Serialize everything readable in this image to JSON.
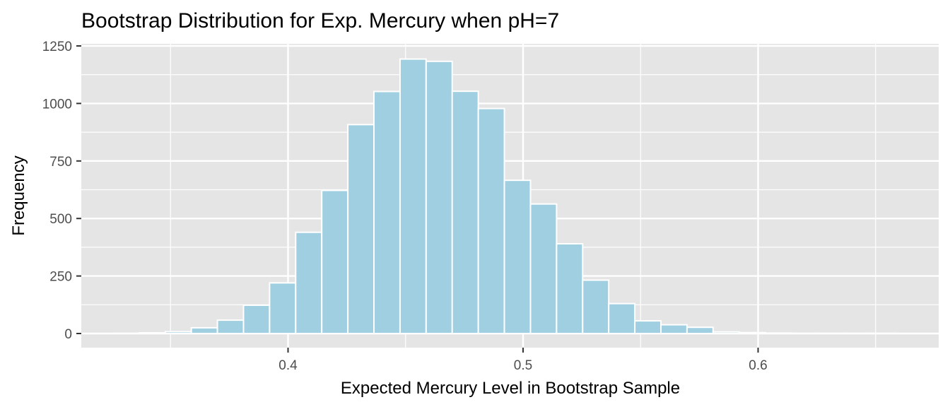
{
  "chart_data": {
    "type": "bar",
    "title": "Bootstrap Distribution for Exp. Mercury when pH=7",
    "xlabel": "Expected Mercury Level in Bootstrap Sample",
    "ylabel": "Frequency",
    "xlim": [
      0.32,
      0.67
    ],
    "ylim": [
      0,
      1250
    ],
    "x_ticks": [
      {
        "value": 0.4,
        "label": "0.4"
      },
      {
        "value": 0.5,
        "label": "0.5"
      },
      {
        "value": 0.6,
        "label": "0.6"
      }
    ],
    "y_ticks": [
      {
        "value": 0,
        "label": "0"
      },
      {
        "value": 250,
        "label": "250"
      },
      {
        "value": 500,
        "label": "500"
      },
      {
        "value": 750,
        "label": "750"
      },
      {
        "value": 1000,
        "label": "1000"
      },
      {
        "value": 1250,
        "label": "1250"
      }
    ],
    "bin_width": 0.0111,
    "bins": [
      {
        "x": 0.3311,
        "count": 1
      },
      {
        "x": 0.3422,
        "count": 3
      },
      {
        "x": 0.3533,
        "count": 8
      },
      {
        "x": 0.3644,
        "count": 25
      },
      {
        "x": 0.3755,
        "count": 58
      },
      {
        "x": 0.3866,
        "count": 123
      },
      {
        "x": 0.3977,
        "count": 220
      },
      {
        "x": 0.4088,
        "count": 440
      },
      {
        "x": 0.4199,
        "count": 622
      },
      {
        "x": 0.431,
        "count": 908
      },
      {
        "x": 0.4421,
        "count": 1052
      },
      {
        "x": 0.4532,
        "count": 1193
      },
      {
        "x": 0.4643,
        "count": 1183
      },
      {
        "x": 0.4754,
        "count": 1053
      },
      {
        "x": 0.4865,
        "count": 978
      },
      {
        "x": 0.4976,
        "count": 666
      },
      {
        "x": 0.5087,
        "count": 563
      },
      {
        "x": 0.5198,
        "count": 390
      },
      {
        "x": 0.5309,
        "count": 232
      },
      {
        "x": 0.542,
        "count": 130
      },
      {
        "x": 0.5531,
        "count": 55
      },
      {
        "x": 0.5642,
        "count": 38
      },
      {
        "x": 0.5753,
        "count": 27
      },
      {
        "x": 0.5864,
        "count": 7
      },
      {
        "x": 0.5975,
        "count": 4
      },
      {
        "x": 0.6086,
        "count": 2
      },
      {
        "x": 0.6197,
        "count": 1
      },
      {
        "x": 0.6308,
        "count": 1
      },
      {
        "x": 0.6419,
        "count": 1
      },
      {
        "x": 0.653,
        "count": 1
      }
    ],
    "grid": true,
    "legend": "none",
    "colors": {
      "panel": "#e5e5e5",
      "grid": "#ffffff",
      "bar_fill": "#9fcfe0",
      "bar_stroke": "#ffffff",
      "tick": "#333333"
    }
  }
}
